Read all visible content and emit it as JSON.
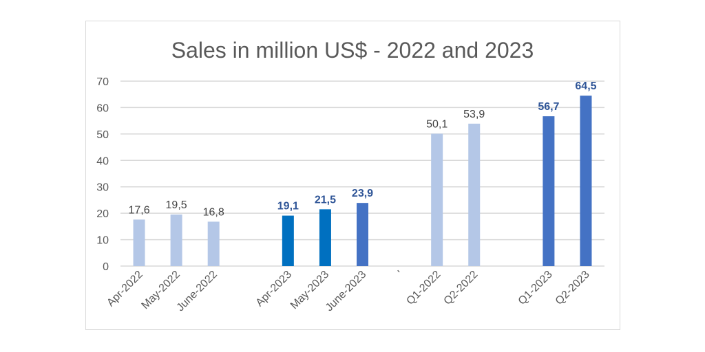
{
  "chart_data": {
    "type": "bar",
    "title": "Sales in million US$ - 2022 and 2023",
    "xlabel": "",
    "ylabel": "",
    "ylim": [
      0,
      70
    ],
    "yticks": [
      0,
      10,
      20,
      30,
      40,
      50,
      60,
      70
    ],
    "grid": true,
    "legend": "none",
    "categories": [
      "Apr-2022",
      "May-2022",
      "June-2022",
      "",
      "Apr-2023",
      "May-2023",
      "June-2023",
      "'",
      "Q1-2022",
      "Q2-2022",
      "",
      "Q1-2023",
      "Q2-2023"
    ],
    "values": [
      17.6,
      19.5,
      16.8,
      null,
      19.1,
      21.5,
      23.9,
      null,
      50.1,
      53.9,
      null,
      56.7,
      64.5
    ],
    "data_labels": [
      "17,6",
      "19,5",
      "16,8",
      "",
      "19,1",
      "21,5",
      "23,9",
      "",
      "50,1",
      "53,9",
      "",
      "56,7",
      "64,5"
    ],
    "bar_colors": [
      "#b4c7e7",
      "#b4c7e7",
      "#b4c7e7",
      "",
      "#0070c0",
      "#0070c0",
      "#4472c4",
      "",
      "#b4c7e7",
      "#b4c7e7",
      "",
      "#4472c4",
      "#4472c4"
    ],
    "label_bold": [
      false,
      false,
      false,
      false,
      true,
      true,
      true,
      false,
      false,
      false,
      false,
      true,
      true
    ],
    "label_colors": {
      "normal": "#404040",
      "bold": "#2f5597"
    }
  }
}
